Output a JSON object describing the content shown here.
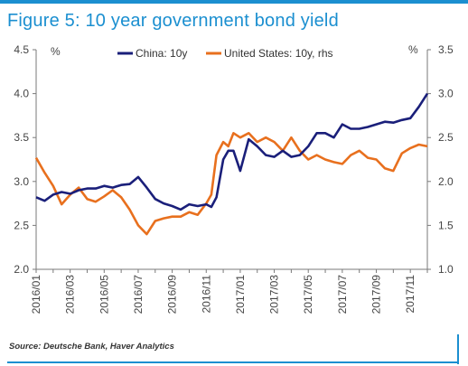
{
  "title": "Figure 5: 10 year government bond yield",
  "source": "Source: Deutsche Bank, Haver Analytics",
  "colors": {
    "accent": "#1b8fd0",
    "china": "#1a1f7a",
    "us": "#e8701e"
  },
  "chart_data": {
    "type": "line",
    "left_axis_label": "%",
    "right_axis_label": "%",
    "ylim_left": [
      2.0,
      4.5
    ],
    "ylim_right": [
      1.0,
      3.5
    ],
    "yticks_left": [
      "2.0",
      "2.5",
      "3.0",
      "3.5",
      "4.0",
      "4.5"
    ],
    "yticks_right": [
      "1.0",
      "1.5",
      "2.0",
      "2.5",
      "3.0",
      "3.5"
    ],
    "x_tick_labels": [
      "2016/01",
      "2016/03",
      "2016/05",
      "2016/07",
      "2016/09",
      "2016/11",
      "2017/01",
      "2017/03",
      "2017/05",
      "2017/07",
      "2017/09",
      "2017/11"
    ],
    "x_range_months": [
      0,
      23
    ],
    "grid": false,
    "legend_position": "top",
    "series": [
      {
        "name": "China: 10y",
        "axis": "left",
        "x": [
          0,
          0.5,
          1,
          1.5,
          2,
          2.5,
          3,
          3.5,
          4,
          4.5,
          5,
          5.5,
          6,
          6.5,
          7,
          7.5,
          8,
          8.5,
          9,
          9.5,
          10,
          10.3,
          10.6,
          11,
          11.3,
          11.6,
          12,
          12.5,
          13,
          13.5,
          14,
          14.5,
          15,
          15.5,
          16,
          16.5,
          17,
          17.5,
          18,
          18.5,
          19,
          19.5,
          20,
          20.5,
          21,
          21.5,
          22,
          22.5,
          23
        ],
        "values": [
          2.82,
          2.78,
          2.85,
          2.88,
          2.86,
          2.9,
          2.92,
          2.92,
          2.95,
          2.93,
          2.96,
          2.97,
          3.05,
          2.93,
          2.8,
          2.75,
          2.72,
          2.68,
          2.74,
          2.72,
          2.74,
          2.71,
          2.82,
          3.25,
          3.35,
          3.35,
          3.12,
          3.48,
          3.4,
          3.3,
          3.28,
          3.35,
          3.28,
          3.3,
          3.4,
          3.55,
          3.55,
          3.5,
          3.65,
          3.6,
          3.6,
          3.62,
          3.65,
          3.68,
          3.67,
          3.7,
          3.72,
          3.85,
          4.0
        ]
      },
      {
        "name": "United States: 10y, rhs",
        "axis": "right",
        "x": [
          0,
          0.5,
          1,
          1.5,
          2,
          2.5,
          3,
          3.5,
          4,
          4.5,
          5,
          5.5,
          6,
          6.5,
          7,
          7.5,
          8,
          8.5,
          9,
          9.5,
          10,
          10.3,
          10.6,
          11,
          11.3,
          11.6,
          12,
          12.5,
          13,
          13.5,
          14,
          14.5,
          15,
          15.5,
          16,
          16.5,
          17,
          17.5,
          18,
          18.5,
          19,
          19.5,
          20,
          20.5,
          21,
          21.5,
          22,
          22.5,
          23
        ],
        "values": [
          2.27,
          2.1,
          1.95,
          1.74,
          1.85,
          1.93,
          1.8,
          1.77,
          1.83,
          1.9,
          1.82,
          1.68,
          1.5,
          1.4,
          1.55,
          1.58,
          1.6,
          1.6,
          1.65,
          1.62,
          1.75,
          1.85,
          2.3,
          2.45,
          2.4,
          2.55,
          2.5,
          2.55,
          2.45,
          2.5,
          2.45,
          2.35,
          2.5,
          2.35,
          2.25,
          2.3,
          2.25,
          2.22,
          2.2,
          2.3,
          2.35,
          2.27,
          2.25,
          2.15,
          2.12,
          2.32,
          2.38,
          2.42,
          2.4
        ]
      }
    ]
  }
}
